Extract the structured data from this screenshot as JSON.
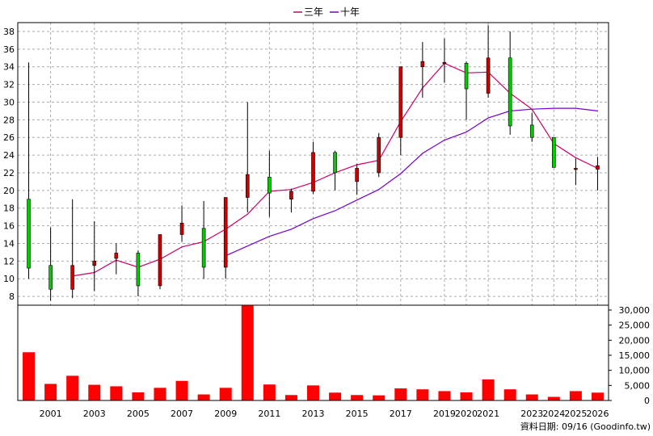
{
  "chart_data": {
    "type": "candlestick",
    "legend": [
      {
        "name": "三年",
        "color": "#cc0066"
      },
      {
        "name": "十年",
        "color": "#7700cc"
      }
    ],
    "x_categories": [
      "2000",
      "2001",
      "2002",
      "2003",
      "2004",
      "2005",
      "2006",
      "2007",
      "2008",
      "2009",
      "2010",
      "2011",
      "2012",
      "2013",
      "2014",
      "2015",
      "2016",
      "2017",
      "2018",
      "2019",
      "2020",
      "2021",
      "2022",
      "2023",
      "2024",
      "2025",
      "2026"
    ],
    "x_tick_labels": [
      "2001",
      "2003",
      "2005",
      "2007",
      "2009",
      "2011",
      "2013",
      "2015",
      "2017",
      "2019",
      "2020",
      "2021",
      "2023",
      "2024",
      "2025",
      "2026"
    ],
    "x_tick_positions": [
      "2001",
      "2003",
      "2005",
      "2007",
      "2009",
      "2011",
      "2013",
      "2015",
      "2017",
      "2019",
      "2020",
      "2021",
      "2023",
      "2024",
      "2025",
      "2026"
    ],
    "price_axis": {
      "ticks": [
        "8",
        "10",
        "12",
        "14",
        "16",
        "18",
        "20",
        "22",
        "24",
        "26",
        "28",
        "30",
        "32",
        "34",
        "36",
        "38"
      ],
      "range": [
        7,
        39
      ]
    },
    "volume_axis": {
      "ticks": [
        "0",
        "5,000",
        "10,000",
        "15,000",
        "20,000",
        "25,000",
        "30,000"
      ],
      "range": [
        0,
        30000
      ]
    },
    "candles": [
      {
        "year": "2000",
        "open": 11.2,
        "close": 19.0,
        "high": 34.5,
        "low": 10.0,
        "up": true
      },
      {
        "year": "2001",
        "open": 8.8,
        "close": 11.5,
        "high": 15.8,
        "low": 7.5,
        "up": true
      },
      {
        "year": "2002",
        "open": 11.5,
        "close": 8.8,
        "high": 19.0,
        "low": 7.8,
        "up": false
      },
      {
        "year": "2003",
        "open": 12.0,
        "close": 11.5,
        "high": 16.5,
        "low": 8.6,
        "up": false
      },
      {
        "year": "2004",
        "open": 12.9,
        "close": 12.3,
        "high": 14.0,
        "low": 10.5,
        "up": false
      },
      {
        "year": "2005",
        "open": 9.2,
        "close": 12.9,
        "high": 13.2,
        "low": 8.0,
        "up": true
      },
      {
        "year": "2006",
        "open": 15.0,
        "close": 9.2,
        "high": 15.0,
        "low": 8.8,
        "up": false
      },
      {
        "year": "2007",
        "open": 16.3,
        "close": 15.0,
        "high": 18.3,
        "low": 14.2,
        "up": false
      },
      {
        "year": "2008",
        "open": 11.3,
        "close": 15.7,
        "high": 18.8,
        "low": 10.0,
        "up": true
      },
      {
        "year": "2009",
        "open": 19.2,
        "close": 11.3,
        "high": 19.2,
        "low": 10.0,
        "up": false
      },
      {
        "year": "2010",
        "open": 21.8,
        "close": 19.2,
        "high": 30.0,
        "low": 17.5,
        "up": false
      },
      {
        "year": "2011",
        "open": 19.7,
        "close": 21.5,
        "high": 24.5,
        "low": 17.0,
        "up": true
      },
      {
        "year": "2012",
        "open": 19.9,
        "close": 19.0,
        "high": 20.2,
        "low": 17.5,
        "up": false
      },
      {
        "year": "2013",
        "open": 24.3,
        "close": 19.9,
        "high": 25.5,
        "low": 19.6,
        "up": false
      },
      {
        "year": "2014",
        "open": 22.0,
        "close": 24.3,
        "high": 24.5,
        "low": 20.0,
        "up": true
      },
      {
        "year": "2015",
        "open": 22.5,
        "close": 21.0,
        "high": 23.0,
        "low": 19.5,
        "up": false
      },
      {
        "year": "2016",
        "open": 26.0,
        "close": 22.0,
        "high": 26.5,
        "low": 21.5,
        "up": false
      },
      {
        "year": "2017",
        "open": 34.0,
        "close": 26.0,
        "high": 34.0,
        "low": 24.0,
        "up": false
      },
      {
        "year": "2018",
        "open": 34.6,
        "close": 34.0,
        "high": 36.8,
        "low": 30.5,
        "up": false
      },
      {
        "year": "2019",
        "open": 34.5,
        "close": 34.5,
        "high": 37.2,
        "low": 32.2,
        "up": false
      },
      {
        "year": "2020",
        "open": 31.5,
        "close": 34.4,
        "high": 34.6,
        "low": 28.0,
        "up": true
      },
      {
        "year": "2021",
        "open": 35.0,
        "close": 31.0,
        "high": 38.7,
        "low": 30.5,
        "up": false
      },
      {
        "year": "2022",
        "open": 27.3,
        "close": 35.0,
        "high": 38.0,
        "low": 26.3,
        "up": true
      },
      {
        "year": "2023",
        "open": 26.0,
        "close": 27.4,
        "high": 28.8,
        "low": 25.5,
        "up": true
      },
      {
        "year": "2024",
        "open": 22.6,
        "close": 26.0,
        "high": 26.0,
        "low": 22.6,
        "up": true
      },
      {
        "year": "2025",
        "open": 22.5,
        "close": 22.5,
        "high": 23.6,
        "low": 20.6,
        "up": false
      },
      {
        "year": "2026",
        "open": 22.8,
        "close": 22.4,
        "high": 23.8,
        "low": 20.0,
        "up": false
      }
    ],
    "ma_3yr": [
      {
        "year": "2002",
        "value": 10.3
      },
      {
        "year": "2003",
        "value": 10.7
      },
      {
        "year": "2004",
        "value": 12.1
      },
      {
        "year": "2005",
        "value": 11.3
      },
      {
        "year": "2006",
        "value": 12.2
      },
      {
        "year": "2007",
        "value": 13.6
      },
      {
        "year": "2008",
        "value": 14.2
      },
      {
        "year": "2009",
        "value": 15.6
      },
      {
        "year": "2010",
        "value": 17.3
      },
      {
        "year": "2011",
        "value": 19.9
      },
      {
        "year": "2012",
        "value": 20.1
      },
      {
        "year": "2013",
        "value": 20.9
      },
      {
        "year": "2014",
        "value": 22.0
      },
      {
        "year": "2015",
        "value": 22.9
      },
      {
        "year": "2016",
        "value": 23.4
      },
      {
        "year": "2017",
        "value": 27.8
      },
      {
        "year": "2018",
        "value": 31.6
      },
      {
        "year": "2019",
        "value": 34.4
      },
      {
        "year": "2020",
        "value": 33.3
      },
      {
        "year": "2021",
        "value": 33.4
      },
      {
        "year": "2022",
        "value": 31.0
      },
      {
        "year": "2023",
        "value": 29.2
      },
      {
        "year": "2024",
        "value": 25.3
      },
      {
        "year": "2025",
        "value": 23.7
      },
      {
        "year": "2026",
        "value": 22.5
      }
    ],
    "ma_10yr": [
      {
        "year": "2009",
        "value": 12.6
      },
      {
        "year": "2010",
        "value": 13.7
      },
      {
        "year": "2011",
        "value": 14.8
      },
      {
        "year": "2012",
        "value": 15.6
      },
      {
        "year": "2013",
        "value": 16.8
      },
      {
        "year": "2014",
        "value": 17.7
      },
      {
        "year": "2015",
        "value": 18.9
      },
      {
        "year": "2016",
        "value": 20.1
      },
      {
        "year": "2017",
        "value": 21.9
      },
      {
        "year": "2018",
        "value": 24.2
      },
      {
        "year": "2019",
        "value": 25.7
      },
      {
        "year": "2020",
        "value": 26.6
      },
      {
        "year": "2021",
        "value": 28.2
      },
      {
        "year": "2022",
        "value": 29.0
      },
      {
        "year": "2023",
        "value": 29.2
      },
      {
        "year": "2024",
        "value": 29.3
      },
      {
        "year": "2025",
        "value": 29.3
      },
      {
        "year": "2026",
        "value": 29.0
      }
    ],
    "volume": [
      {
        "year": "2000",
        "value": 16000
      },
      {
        "year": "2001",
        "value": 5500
      },
      {
        "year": "2002",
        "value": 8200
      },
      {
        "year": "2003",
        "value": 5200
      },
      {
        "year": "2004",
        "value": 4700
      },
      {
        "year": "2005",
        "value": 2700
      },
      {
        "year": "2006",
        "value": 4200
      },
      {
        "year": "2007",
        "value": 6500
      },
      {
        "year": "2008",
        "value": 2000
      },
      {
        "year": "2009",
        "value": 4200
      },
      {
        "year": "2010",
        "value": 31500
      },
      {
        "year": "2011",
        "value": 5300
      },
      {
        "year": "2012",
        "value": 1800
      },
      {
        "year": "2013",
        "value": 5000
      },
      {
        "year": "2014",
        "value": 2600
      },
      {
        "year": "2015",
        "value": 1800
      },
      {
        "year": "2016",
        "value": 1700
      },
      {
        "year": "2017",
        "value": 4000
      },
      {
        "year": "2018",
        "value": 3700
      },
      {
        "year": "2019",
        "value": 3100
      },
      {
        "year": "2020",
        "value": 2700
      },
      {
        "year": "2021",
        "value": 7000
      },
      {
        "year": "2022",
        "value": 3700
      },
      {
        "year": "2023",
        "value": 2000
      },
      {
        "year": "2024",
        "value": 1200
      },
      {
        "year": "2025",
        "value": 3100
      },
      {
        "year": "2026",
        "value": 2600
      }
    ],
    "colors": {
      "up": "#00cc00",
      "down": "#cc0000",
      "volume": "#ff0000",
      "wick": "#000000",
      "grid": "#aaaaaa"
    },
    "source_text": "資料日期: 09/16 (Goodinfo.tw)"
  }
}
